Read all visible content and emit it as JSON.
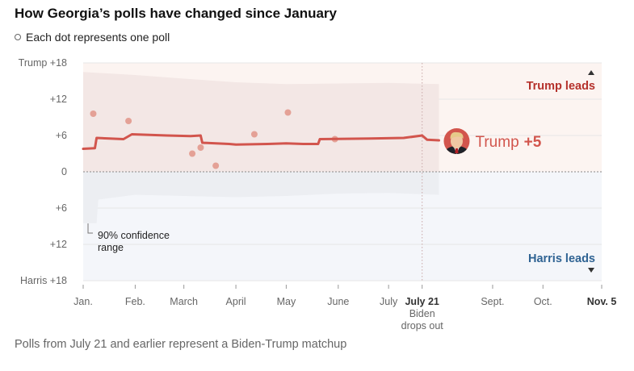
{
  "title": "How Georgia’s polls have changed since January",
  "legend_text": "Each dot represents one poll",
  "footnote": "Polls from July 21 and earlier represent a Biden-Trump matchup",
  "colors": {
    "trump": "#d2554d",
    "trump_dark": "#b5312b",
    "harris": "#2f6393",
    "trump_band": "#f3e7e5",
    "harris_band": "#eceef2",
    "trump_bg": "#fcf4f1",
    "harris_bg": "#f4f6fa",
    "poll_dot": "#e4a196",
    "grid": "#e6e6e6"
  },
  "annotations": {
    "trump_leads": "Trump leads",
    "harris_leads": "Harris leads",
    "confidence_line1": "90% confidence",
    "confidence_line2": "range",
    "trump_name": "Trump",
    "trump_margin": "+5",
    "dropout_line1": "Biden",
    "dropout_line2": "drops out",
    "candidate_icon": "trump-headshot-icon",
    "up_icon": "triangle-up-icon",
    "down_icon": "triangle-down-icon",
    "legend_icon": "circle-outline-icon"
  },
  "chart_data": {
    "type": "line",
    "title": "How Georgia’s polls have changed since January",
    "x_axis_type": "date",
    "xlim": [
      "2024-01-01",
      "2024-11-05"
    ],
    "x_ticks": [
      {
        "date": "2024-01-01",
        "label": "Jan.",
        "bold": false
      },
      {
        "date": "2024-02-01",
        "label": "Feb.",
        "bold": false
      },
      {
        "date": "2024-03-01",
        "label": "March",
        "bold": false
      },
      {
        "date": "2024-04-01",
        "label": "April",
        "bold": false
      },
      {
        "date": "2024-05-01",
        "label": "May",
        "bold": false
      },
      {
        "date": "2024-06-01",
        "label": "June",
        "bold": false
      },
      {
        "date": "2024-07-01",
        "label": "July",
        "bold": false
      },
      {
        "date": "2024-07-21",
        "label": "July 21",
        "bold": true
      },
      {
        "date": "2024-09-01",
        "label": "Sept.",
        "bold": false
      },
      {
        "date": "2024-10-01",
        "label": "Oct.",
        "bold": false
      },
      {
        "date": "2024-11-05",
        "label": "Nov. 5",
        "bold": true
      }
    ],
    "ylim": [
      -18,
      18
    ],
    "y_ticks": [
      {
        "value": 18,
        "label": "Trump +18"
      },
      {
        "value": 12,
        "label": "+12"
      },
      {
        "value": 6,
        "label": "+6"
      },
      {
        "value": 0,
        "label": "0"
      },
      {
        "value": -6,
        "label": "+6"
      },
      {
        "value": -12,
        "label": "+12"
      },
      {
        "value": -18,
        "label": "Harris +18"
      }
    ],
    "grid": true,
    "event": {
      "date": "2024-07-21",
      "label": "Biden drops out"
    },
    "series": [
      {
        "name": "Trump",
        "points": [
          {
            "x": "2024-01-01",
            "y": 3.8
          },
          {
            "x": "2024-01-08",
            "y": 3.9
          },
          {
            "x": "2024-01-09",
            "y": 5.6
          },
          {
            "x": "2024-01-25",
            "y": 5.4
          },
          {
            "x": "2024-01-30",
            "y": 6.2
          },
          {
            "x": "2024-02-20",
            "y": 6.0
          },
          {
            "x": "2024-03-05",
            "y": 5.9
          },
          {
            "x": "2024-03-11",
            "y": 6.0
          },
          {
            "x": "2024-03-12",
            "y": 4.8
          },
          {
            "x": "2024-03-28",
            "y": 4.6
          },
          {
            "x": "2024-04-01",
            "y": 4.5
          },
          {
            "x": "2024-04-20",
            "y": 4.6
          },
          {
            "x": "2024-05-01",
            "y": 4.7
          },
          {
            "x": "2024-05-11",
            "y": 4.6
          },
          {
            "x": "2024-05-20",
            "y": 4.6
          },
          {
            "x": "2024-05-21",
            "y": 5.4
          },
          {
            "x": "2024-06-20",
            "y": 5.5
          },
          {
            "x": "2024-07-10",
            "y": 5.6
          },
          {
            "x": "2024-07-21",
            "y": 6.0
          },
          {
            "x": "2024-07-24",
            "y": 5.3
          },
          {
            "x": "2024-07-31",
            "y": 5.2
          }
        ],
        "ci_upper": [
          {
            "x": "2024-01-01",
            "y": 16.5
          },
          {
            "x": "2024-02-01",
            "y": 16.0
          },
          {
            "x": "2024-03-01",
            "y": 15.4
          },
          {
            "x": "2024-04-01",
            "y": 14.8
          },
          {
            "x": "2024-05-01",
            "y": 14.5
          },
          {
            "x": "2024-06-01",
            "y": 14.6
          },
          {
            "x": "2024-07-01",
            "y": 14.7
          },
          {
            "x": "2024-07-31",
            "y": 14.5
          }
        ],
        "ci_lower": [
          {
            "x": "2024-01-01",
            "y": -8.5
          },
          {
            "x": "2024-01-09",
            "y": -8.5
          },
          {
            "x": "2024-01-10",
            "y": -4.6
          },
          {
            "x": "2024-02-01",
            "y": -3.8
          },
          {
            "x": "2024-03-01",
            "y": -4.0
          },
          {
            "x": "2024-04-01",
            "y": -4.2
          },
          {
            "x": "2024-05-01",
            "y": -4.0
          },
          {
            "x": "2024-06-01",
            "y": -3.6
          },
          {
            "x": "2024-07-01",
            "y": -3.5
          },
          {
            "x": "2024-07-31",
            "y": -3.8
          }
        ]
      }
    ],
    "polls": [
      {
        "x": "2024-01-07",
        "y": 9.6
      },
      {
        "x": "2024-01-28",
        "y": 8.4
      },
      {
        "x": "2024-03-06",
        "y": 3.0
      },
      {
        "x": "2024-03-11",
        "y": 4.0
      },
      {
        "x": "2024-03-20",
        "y": 1.0
      },
      {
        "x": "2024-04-12",
        "y": 6.2
      },
      {
        "x": "2024-05-02",
        "y": 9.8
      },
      {
        "x": "2024-05-30",
        "y": 5.4
      }
    ],
    "current": {
      "name": "Trump",
      "value": "+5"
    }
  }
}
